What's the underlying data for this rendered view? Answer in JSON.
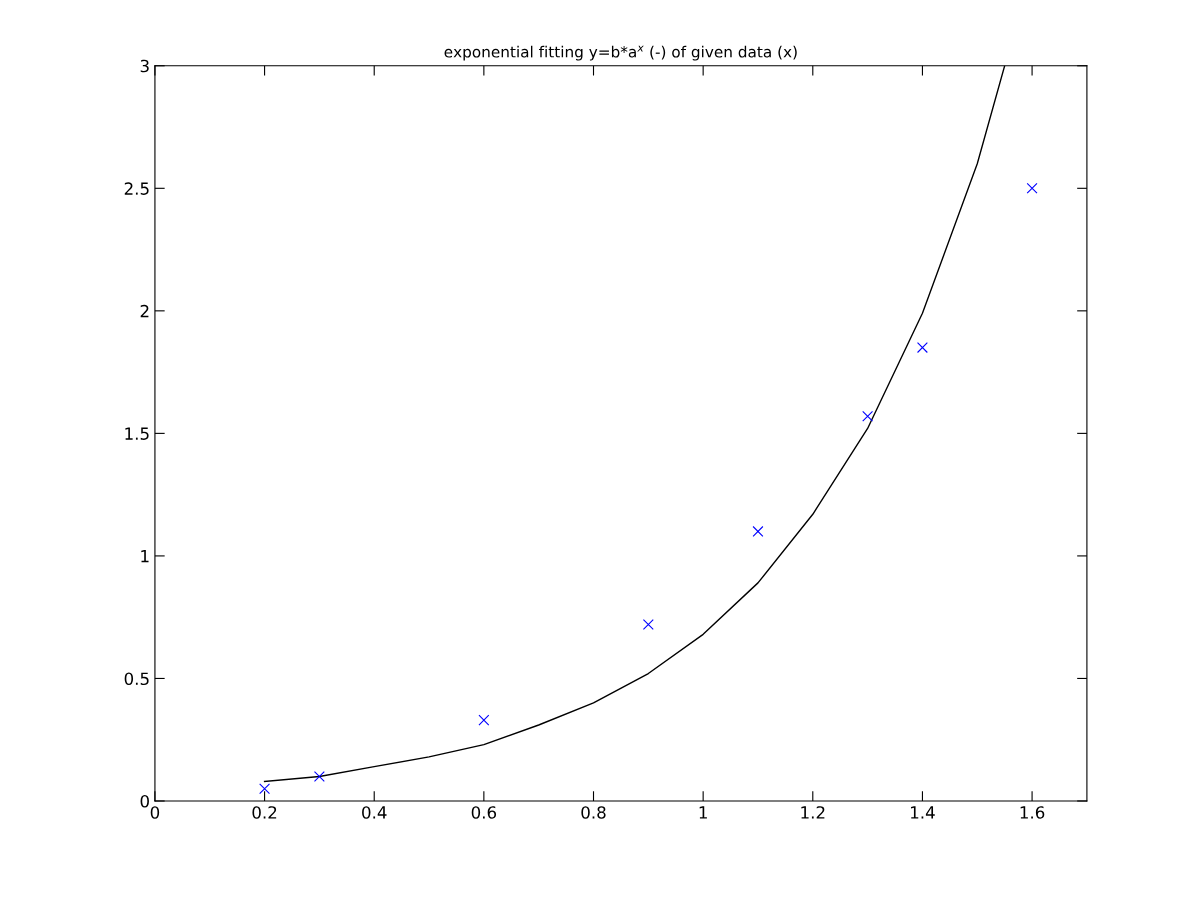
{
  "chart_data": {
    "type": "scatter",
    "title": "exponential fitting y=b*a$^{x}$ (-) of given data (x)",
    "xlim": [
      0,
      1.7
    ],
    "xticks": [
      0,
      0.2,
      0.4,
      0.6,
      0.8,
      1,
      1.2,
      1.4,
      1.6
    ],
    "ylim": [
      0,
      3
    ],
    "yticks": [
      0,
      0.5,
      1,
      1.5,
      2,
      2.5,
      3
    ],
    "grid": false,
    "legend": false,
    "series": [
      {
        "color": "#0000ff",
        "marker": "cross",
        "x": [
          0.2,
          0.3,
          0.6,
          0.9,
          1.1,
          1.3,
          1.4,
          1.6
        ],
        "values": [
          0.05,
          0.1,
          0.33,
          0.72,
          1.1,
          1.57,
          1.85,
          2.5
        ]
      },
      {
        "type": "line",
        "color": "#000000",
        "marker": "none",
        "line_style": "solid",
        "x": [
          0.2,
          0.3,
          0.4,
          0.5,
          0.6,
          0.7,
          0.8,
          0.9,
          1.0,
          1.1,
          1.2,
          1.3,
          1.4,
          1.5,
          1.55
        ],
        "values": [
          0.08,
          0.1,
          0.14,
          0.18,
          0.23,
          0.31,
          0.4,
          0.52,
          0.68,
          0.89,
          1.17,
          1.52,
          1.99,
          2.6,
          3.0
        ]
      }
    ]
  }
}
